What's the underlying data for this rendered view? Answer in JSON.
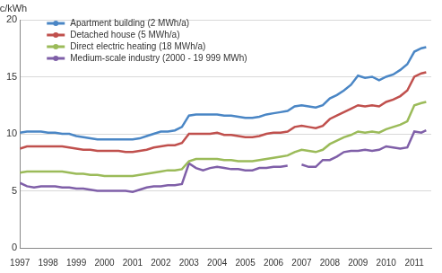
{
  "chart_data": {
    "type": "line",
    "ylabel": "c/kWh",
    "x": [
      1997,
      1997.25,
      1997.5,
      1997.75,
      1998,
      1998.25,
      1998.5,
      1998.75,
      1999,
      1999.25,
      1999.5,
      1999.75,
      2000,
      2000.25,
      2000.5,
      2000.75,
      2001,
      2001.25,
      2001.5,
      2001.75,
      2002,
      2002.25,
      2002.5,
      2002.75,
      2003,
      2003.25,
      2003.5,
      2003.75,
      2004,
      2004.25,
      2004.5,
      2004.75,
      2005,
      2005.25,
      2005.5,
      2005.75,
      2006,
      2006.25,
      2006.5,
      2006.75,
      2007,
      2007.25,
      2007.5,
      2007.75,
      2008,
      2008.25,
      2008.5,
      2008.75,
      2009,
      2009.25,
      2009.5,
      2009.75,
      2010,
      2010.25,
      2010.5,
      2010.75,
      2011,
      2011.25,
      2011.42
    ],
    "series": [
      {
        "name": "Apartment building (2 MWh/a)",
        "color": "#4a86c5",
        "values": [
          10.1,
          10.2,
          10.2,
          10.2,
          10.1,
          10.1,
          10.0,
          10.0,
          9.8,
          9.7,
          9.6,
          9.5,
          9.5,
          9.5,
          9.5,
          9.5,
          9.5,
          9.6,
          9.8,
          10.0,
          10.2,
          10.2,
          10.3,
          10.6,
          11.6,
          11.7,
          11.7,
          11.7,
          11.7,
          11.6,
          11.6,
          11.5,
          11.4,
          11.4,
          11.5,
          11.7,
          11.8,
          11.9,
          12.0,
          12.4,
          12.5,
          12.4,
          12.3,
          12.5,
          13.1,
          13.4,
          13.8,
          14.3,
          15.1,
          14.9,
          15.0,
          14.7,
          15.0,
          15.2,
          15.6,
          16.1,
          17.2,
          17.5,
          17.6
        ]
      },
      {
        "name": "Detached house (5 MWh/a)",
        "color": "#c0504d",
        "values": [
          8.7,
          8.9,
          8.9,
          8.9,
          8.9,
          8.9,
          8.9,
          8.8,
          8.7,
          8.6,
          8.6,
          8.5,
          8.5,
          8.5,
          8.5,
          8.4,
          8.4,
          8.5,
          8.6,
          8.8,
          8.9,
          9.0,
          9.0,
          9.2,
          10.0,
          10.0,
          10.0,
          10.0,
          10.1,
          9.9,
          9.9,
          9.8,
          9.7,
          9.7,
          9.8,
          10.0,
          10.1,
          10.1,
          10.2,
          10.6,
          10.7,
          10.6,
          10.5,
          10.7,
          11.3,
          11.6,
          11.9,
          12.2,
          12.5,
          12.4,
          12.5,
          12.4,
          12.8,
          13.0,
          13.3,
          13.8,
          15.0,
          15.3,
          15.4
        ]
      },
      {
        "name": "Direct electric heating (18 MWh/a)",
        "color": "#9bbb59",
        "values": [
          6.6,
          6.7,
          6.7,
          6.7,
          6.7,
          6.7,
          6.7,
          6.6,
          6.5,
          6.5,
          6.4,
          6.4,
          6.3,
          6.3,
          6.3,
          6.3,
          6.3,
          6.4,
          6.5,
          6.6,
          6.7,
          6.8,
          6.8,
          6.9,
          7.6,
          7.8,
          7.8,
          7.8,
          7.8,
          7.7,
          7.7,
          7.6,
          7.6,
          7.6,
          7.7,
          7.8,
          7.9,
          8.0,
          8.1,
          8.4,
          8.6,
          8.5,
          8.4,
          8.6,
          9.1,
          9.4,
          9.7,
          9.9,
          10.2,
          10.1,
          10.2,
          10.1,
          10.4,
          10.6,
          10.8,
          11.1,
          12.5,
          12.7,
          12.8
        ]
      },
      {
        "name": "Medium-scale industry (2000 - 19 999 MWh)",
        "color": "#7f5fa8",
        "values": [
          5.7,
          5.4,
          5.3,
          5.4,
          5.4,
          5.4,
          5.3,
          5.3,
          5.2,
          5.2,
          5.1,
          5.0,
          5.0,
          5.0,
          5.0,
          5.0,
          4.9,
          5.1,
          5.3,
          5.4,
          5.4,
          5.5,
          5.5,
          5.6,
          7.4,
          7.0,
          6.8,
          7.0,
          7.1,
          7.0,
          6.9,
          6.9,
          6.8,
          6.8,
          7.0,
          7.0,
          7.1,
          7.1,
          7.2,
          null,
          7.3,
          7.1,
          7.1,
          7.7,
          7.7,
          8.0,
          8.4,
          8.5,
          8.5,
          8.6,
          8.5,
          8.6,
          8.9,
          8.8,
          8.7,
          8.8,
          10.2,
          10.1,
          10.3
        ]
      }
    ],
    "xlim": [
      1997,
      2011.6
    ],
    "xticks": [
      1997,
      1998,
      1999,
      2000,
      2001,
      2002,
      2003,
      2004,
      2005,
      2006,
      2007,
      2008,
      2009,
      2010,
      2011
    ],
    "ylim": [
      0,
      20
    ],
    "yticks": [
      0,
      5,
      10,
      15,
      20
    ],
    "grid": true,
    "legend": "upper left"
  }
}
